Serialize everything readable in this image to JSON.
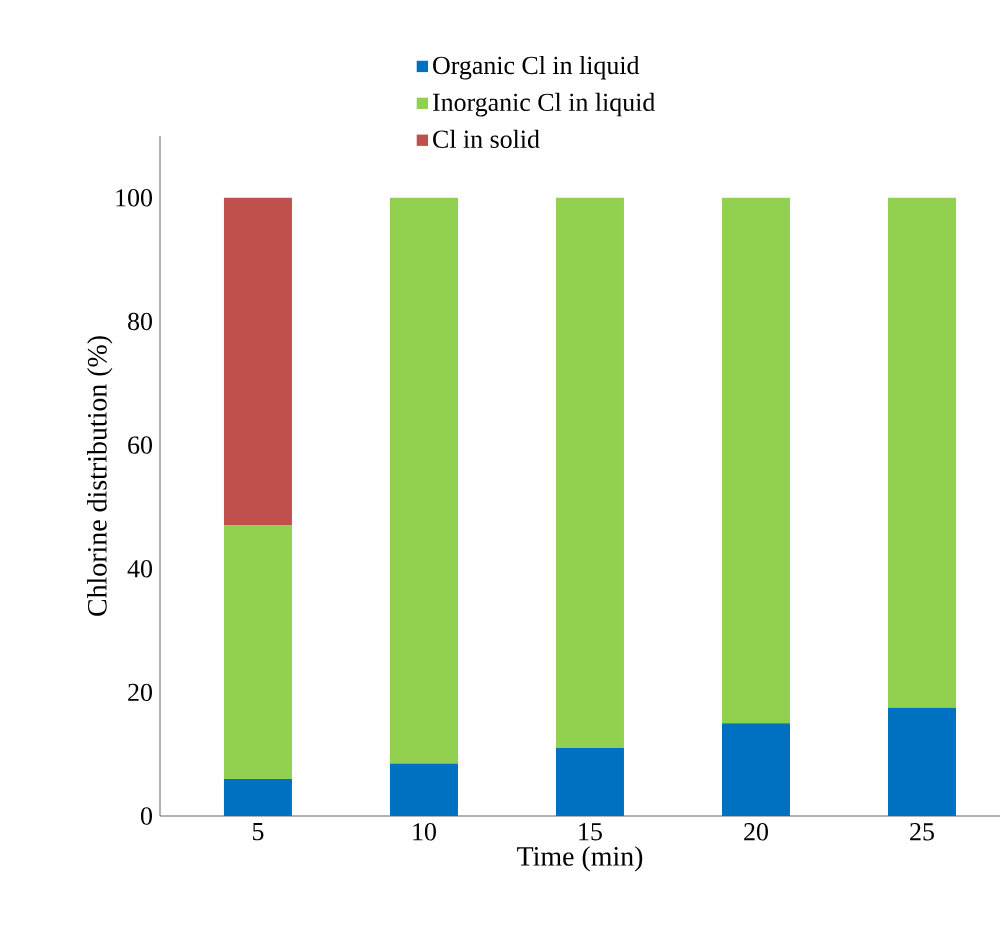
{
  "chart_data": {
    "type": "bar",
    "stacked": true,
    "xlabel": "Time (min)",
    "ylabel": "Chlorine distribution (%)",
    "categories": [
      "5",
      "10",
      "15",
      "20",
      "25"
    ],
    "series": [
      {
        "name": "Organic Cl in liquid",
        "color": "#0070c0",
        "values": [
          6,
          8.5,
          11,
          15,
          17.5
        ]
      },
      {
        "name": "Inorganic Cl in liquid",
        "color": "#92d050",
        "values": [
          41,
          91.5,
          89,
          85,
          82.5
        ]
      },
      {
        "name": "Cl in solid",
        "color": "#c0504d",
        "values": [
          53,
          null,
          null,
          null,
          null
        ]
      }
    ],
    "ylim": [
      0,
      110
    ],
    "yticks": [
      0,
      20,
      40,
      60,
      80,
      100
    ],
    "grid": false,
    "legend": "top"
  }
}
